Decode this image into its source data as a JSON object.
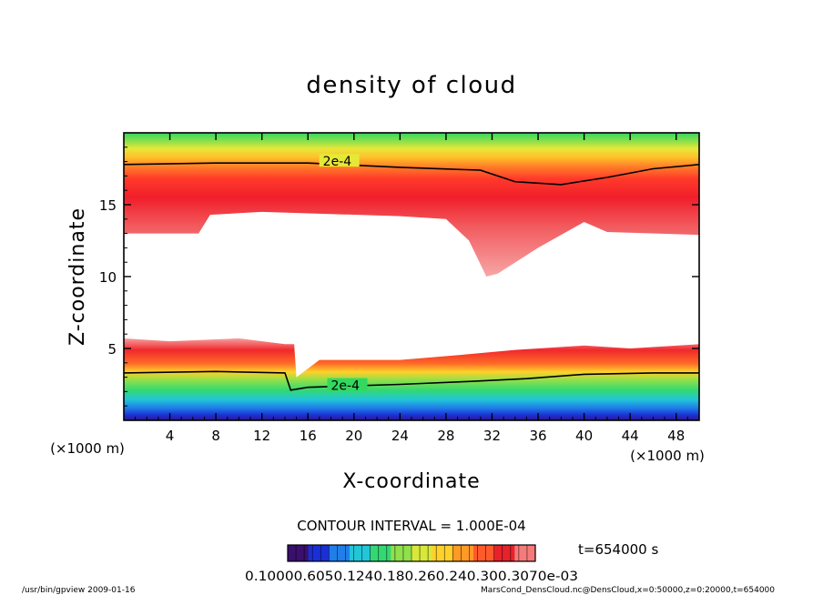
{
  "chart_data": {
    "type": "heatmap",
    "title": "density of cloud",
    "xlabel": "X-coordinate",
    "ylabel": "Z-coordinate",
    "x_unit": "(×1000 m)",
    "z_unit": "(×1000 m)",
    "xlim": [
      0,
      50
    ],
    "ylim": [
      0,
      20
    ],
    "x_ticks": [
      4,
      8,
      12,
      16,
      20,
      24,
      28,
      32,
      36,
      40,
      44,
      48
    ],
    "y_ticks": [
      5,
      10,
      15
    ],
    "contour_labels": [
      {
        "text": "2e-4",
        "x": 17.3,
        "z": 17.9
      },
      {
        "text": "2e-4",
        "x": 18.0,
        "z": 2.3
      }
    ],
    "upper_layer": {
      "top_contour_z": [
        [
          0,
          17.8
        ],
        [
          8,
          17.9
        ],
        [
          16,
          17.9
        ],
        [
          24,
          17.6
        ],
        [
          31,
          17.4
        ],
        [
          34,
          16.6
        ],
        [
          38,
          16.4
        ],
        [
          42,
          16.9
        ],
        [
          46,
          17.5
        ],
        [
          50,
          17.8
        ]
      ],
      "lower_edge_z": [
        [
          0,
          13.0
        ],
        [
          6.5,
          13.0
        ],
        [
          7.5,
          14.3
        ],
        [
          12,
          14.5
        ],
        [
          24,
          14.2
        ],
        [
          28,
          14.0
        ],
        [
          30,
          12.5
        ],
        [
          31.5,
          10.0
        ],
        [
          32.5,
          10.2
        ],
        [
          36,
          12.0
        ],
        [
          40,
          13.8
        ],
        [
          42,
          13.1
        ],
        [
          50,
          12.9
        ]
      ]
    },
    "lower_layer": {
      "top_edge_z": [
        [
          0,
          5.7
        ],
        [
          4,
          5.5
        ],
        [
          10,
          5.7
        ],
        [
          14,
          5.3
        ],
        [
          14.8,
          5.3
        ],
        [
          15.0,
          3.0
        ],
        [
          17,
          4.2
        ],
        [
          24,
          4.2
        ],
        [
          30,
          4.6
        ],
        [
          34,
          4.9
        ],
        [
          40,
          5.2
        ],
        [
          44,
          5.0
        ],
        [
          50,
          5.3
        ]
      ],
      "contour_2e4_z": [
        [
          0,
          3.3
        ],
        [
          8,
          3.4
        ],
        [
          14,
          3.3
        ],
        [
          14.5,
          2.1
        ],
        [
          16,
          2.3
        ],
        [
          24,
          2.5
        ],
        [
          30,
          2.7
        ],
        [
          35,
          2.9
        ],
        [
          40,
          3.2
        ],
        [
          46,
          3.3
        ],
        [
          50,
          3.3
        ]
      ]
    },
    "colorbar": {
      "colors": [
        "#3a0f6e",
        "#1a2fd4",
        "#1f7ee8",
        "#21c6d8",
        "#33d873",
        "#8fe04a",
        "#d8e83a",
        "#ffd12a",
        "#ff9a26",
        "#ff5a2b",
        "#e8222a",
        "#f57a7a"
      ],
      "labels": "0.10000.6050.1240.180.260.240.300.3070e-03"
    },
    "contour_interval": "CONTOUR INTERVAL = 1.000E-04",
    "time_label": "t=654000 s"
  },
  "footer": {
    "left": "/usr/bin/gpview  2009-01-16",
    "right": "MarsCond_DensCloud.nc@DensCloud,x=0:50000,z=0:20000,t=654000"
  }
}
